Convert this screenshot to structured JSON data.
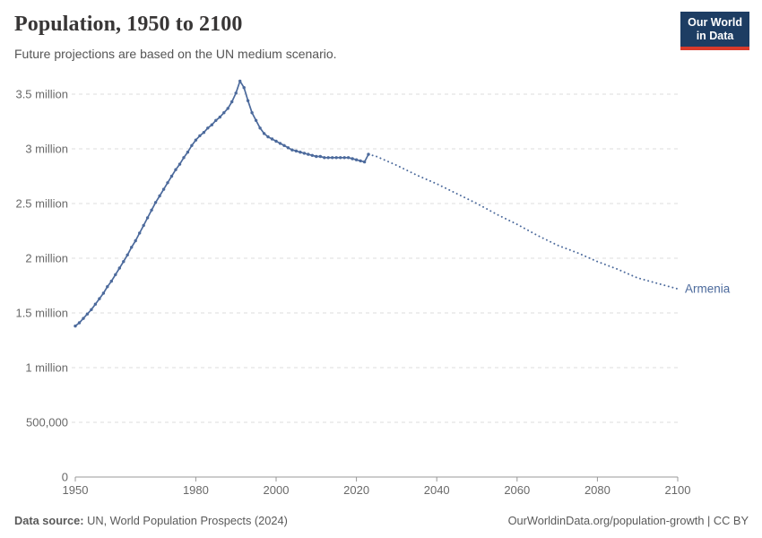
{
  "header": {
    "title": "Population, 1950 to 2100",
    "subtitle": "Future projections are based on the UN medium scenario.",
    "logo": {
      "line1": "Our World",
      "line2": "in Data"
    }
  },
  "footer": {
    "source_label": "Data source:",
    "source_text": " UN, World Population Prospects (2024)",
    "right_text": "OurWorldinData.org/population-growth | CC BY"
  },
  "chart_data": {
    "type": "line",
    "title": "Population, 1950 to 2100",
    "subtitle": "Future projections are based on the UN medium scenario.",
    "entity_label": "Armenia",
    "xlim": [
      1950,
      2100
    ],
    "ylim": [
      0,
      3500000
    ],
    "grid": "horizontal-dashed",
    "legend_position": "end-of-line",
    "x_ticks": [
      1950,
      1980,
      2000,
      2020,
      2040,
      2060,
      2080,
      2100
    ],
    "y_ticks": [
      {
        "value": 0,
        "label": "0"
      },
      {
        "value": 500000,
        "label": "500,000"
      },
      {
        "value": 1000000,
        "label": "1 million"
      },
      {
        "value": 1500000,
        "label": "1.5 million"
      },
      {
        "value": 2000000,
        "label": "2 million"
      },
      {
        "value": 2500000,
        "label": "2.5 million"
      },
      {
        "value": 3000000,
        "label": "3 million"
      },
      {
        "value": 3500000,
        "label": "3.5 million"
      }
    ],
    "colors": {
      "line": "#4c6a9c",
      "grid": "#dddddd",
      "axis": "#999999",
      "tick_label": "#696969",
      "entity_label": "#4c6a9c"
    },
    "series": [
      {
        "name": "Armenia (historical)",
        "style": "solid",
        "markers": true,
        "points": [
          [
            1950,
            1380000
          ],
          [
            1951,
            1410000
          ],
          [
            1952,
            1450000
          ],
          [
            1953,
            1490000
          ],
          [
            1954,
            1530000
          ],
          [
            1955,
            1580000
          ],
          [
            1956,
            1630000
          ],
          [
            1957,
            1680000
          ],
          [
            1958,
            1740000
          ],
          [
            1959,
            1790000
          ],
          [
            1960,
            1850000
          ],
          [
            1961,
            1910000
          ],
          [
            1962,
            1970000
          ],
          [
            1963,
            2030000
          ],
          [
            1964,
            2100000
          ],
          [
            1965,
            2160000
          ],
          [
            1966,
            2230000
          ],
          [
            1967,
            2300000
          ],
          [
            1968,
            2370000
          ],
          [
            1969,
            2440000
          ],
          [
            1970,
            2510000
          ],
          [
            1971,
            2570000
          ],
          [
            1972,
            2630000
          ],
          [
            1973,
            2690000
          ],
          [
            1974,
            2750000
          ],
          [
            1975,
            2810000
          ],
          [
            1976,
            2860000
          ],
          [
            1977,
            2920000
          ],
          [
            1978,
            2970000
          ],
          [
            1979,
            3030000
          ],
          [
            1980,
            3080000
          ],
          [
            1981,
            3120000
          ],
          [
            1982,
            3150000
          ],
          [
            1983,
            3190000
          ],
          [
            1984,
            3220000
          ],
          [
            1985,
            3260000
          ],
          [
            1986,
            3290000
          ],
          [
            1987,
            3330000
          ],
          [
            1988,
            3370000
          ],
          [
            1989,
            3430000
          ],
          [
            1990,
            3510000
          ],
          [
            1991,
            3620000
          ],
          [
            1992,
            3560000
          ],
          [
            1993,
            3440000
          ],
          [
            1994,
            3330000
          ],
          [
            1995,
            3260000
          ],
          [
            1996,
            3190000
          ],
          [
            1997,
            3140000
          ],
          [
            1998,
            3110000
          ],
          [
            1999,
            3090000
          ],
          [
            2000,
            3070000
          ],
          [
            2001,
            3050000
          ],
          [
            2002,
            3030000
          ],
          [
            2003,
            3010000
          ],
          [
            2004,
            2990000
          ],
          [
            2005,
            2980000
          ],
          [
            2006,
            2970000
          ],
          [
            2007,
            2960000
          ],
          [
            2008,
            2950000
          ],
          [
            2009,
            2940000
          ],
          [
            2010,
            2930000
          ],
          [
            2011,
            2930000
          ],
          [
            2012,
            2920000
          ],
          [
            2013,
            2920000
          ],
          [
            2014,
            2920000
          ],
          [
            2015,
            2920000
          ],
          [
            2016,
            2920000
          ],
          [
            2017,
            2920000
          ],
          [
            2018,
            2920000
          ],
          [
            2019,
            2910000
          ],
          [
            2020,
            2900000
          ],
          [
            2021,
            2890000
          ],
          [
            2022,
            2880000
          ],
          [
            2023,
            2950000
          ]
        ]
      },
      {
        "name": "Armenia (UN medium projection)",
        "style": "dotted",
        "markers": false,
        "points": [
          [
            2023,
            2950000
          ],
          [
            2025,
            2930000
          ],
          [
            2030,
            2850000
          ],
          [
            2035,
            2760000
          ],
          [
            2040,
            2680000
          ],
          [
            2045,
            2590000
          ],
          [
            2050,
            2500000
          ],
          [
            2055,
            2400000
          ],
          [
            2060,
            2310000
          ],
          [
            2065,
            2210000
          ],
          [
            2070,
            2120000
          ],
          [
            2075,
            2050000
          ],
          [
            2080,
            1970000
          ],
          [
            2085,
            1900000
          ],
          [
            2090,
            1820000
          ],
          [
            2095,
            1770000
          ],
          [
            2100,
            1720000
          ]
        ]
      }
    ]
  }
}
